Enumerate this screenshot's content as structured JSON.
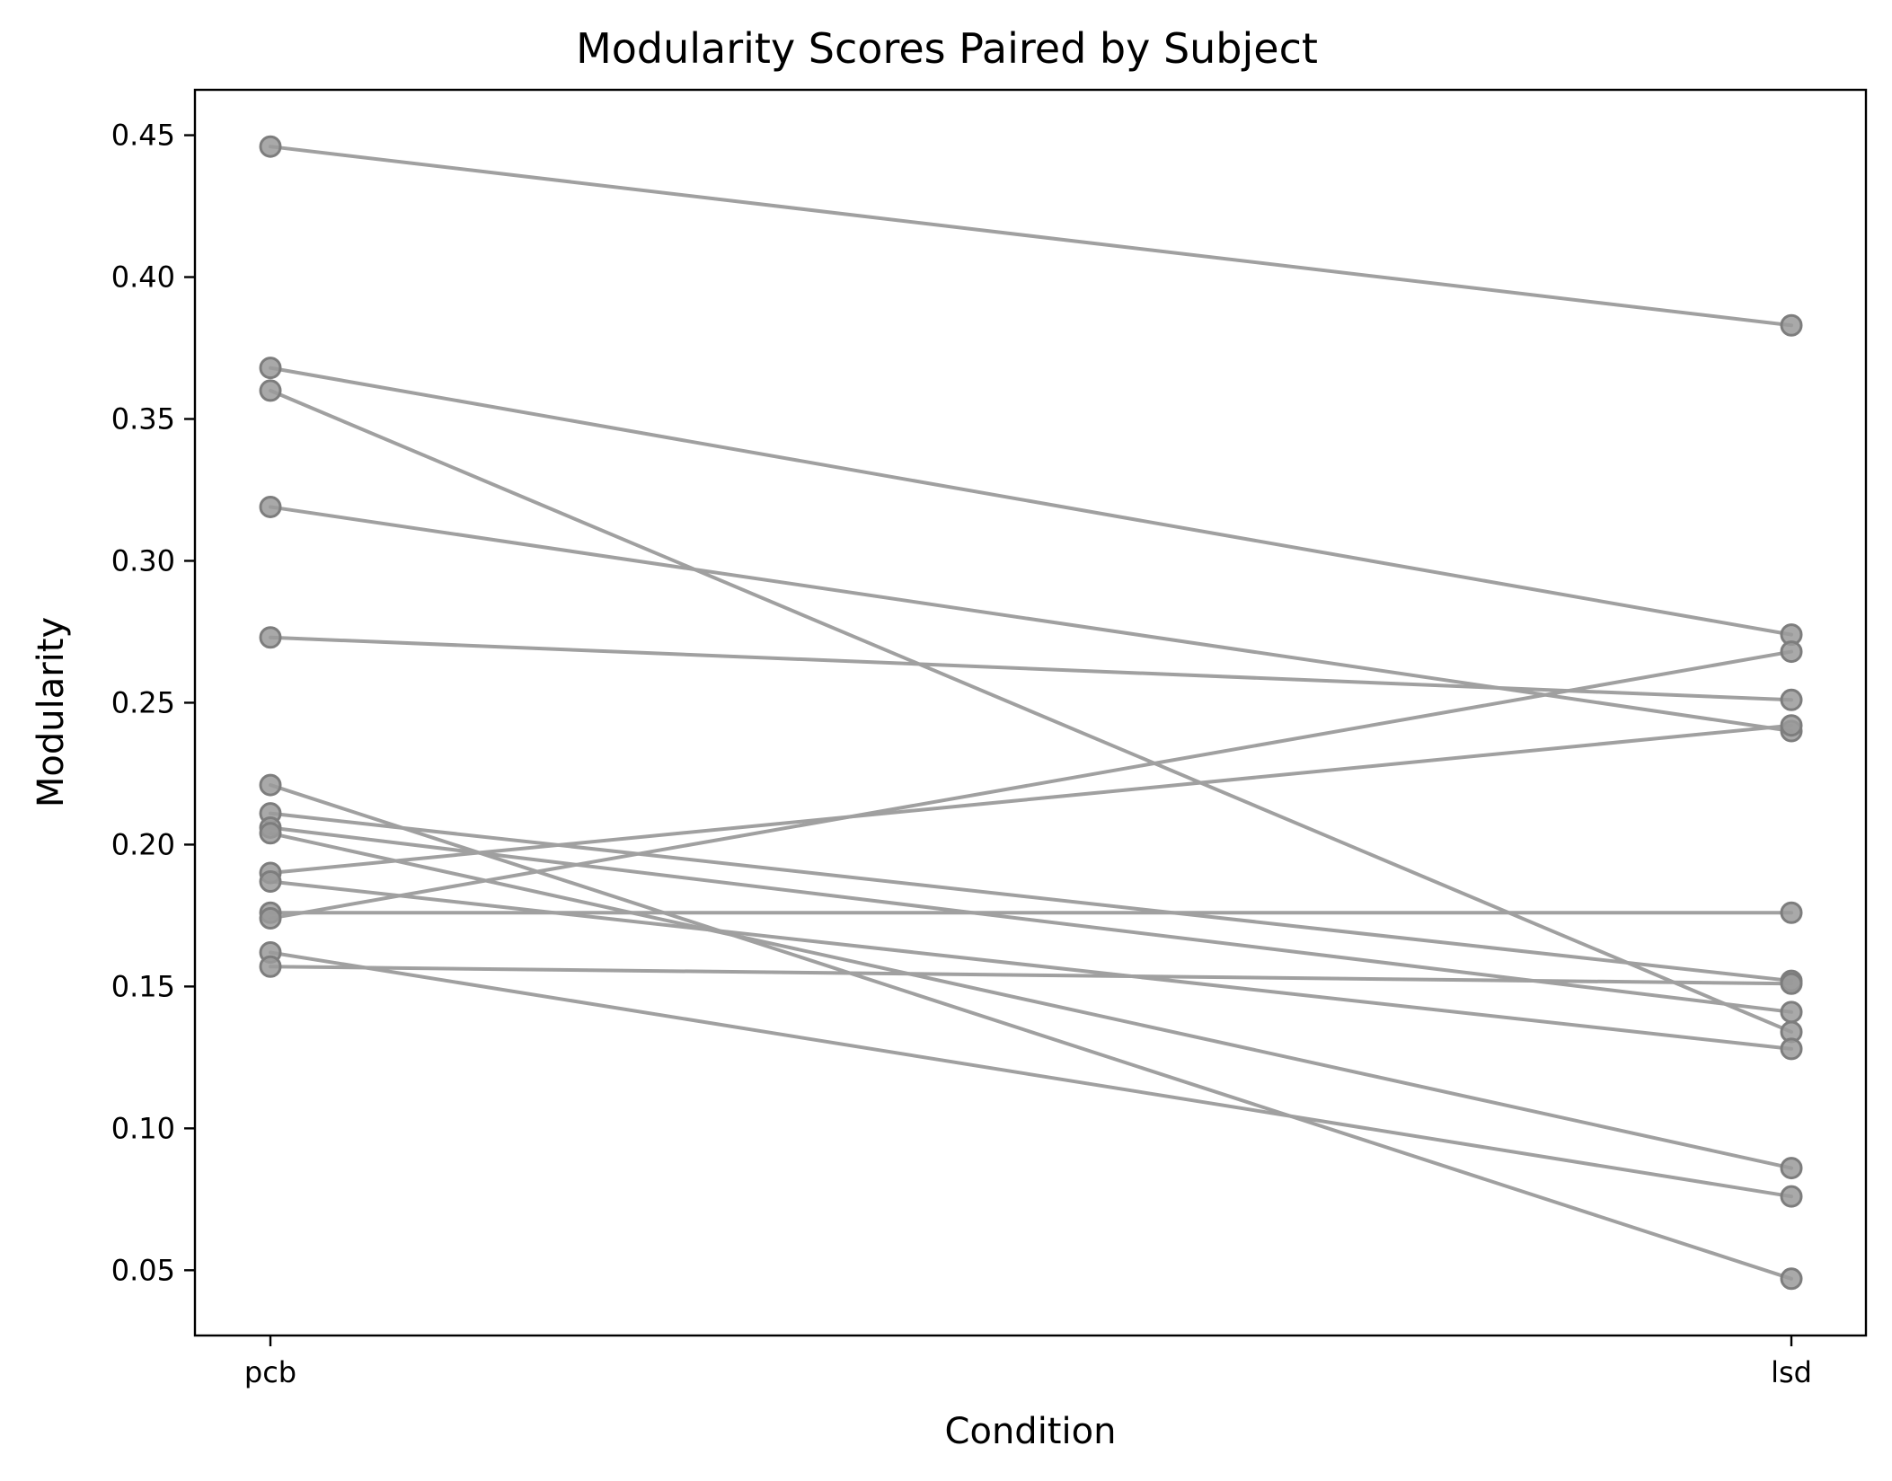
{
  "chart_data": {
    "type": "line",
    "title": "Modularity Scores Paired by Subject",
    "xlabel": "Condition",
    "ylabel": "Modularity",
    "categories": [
      "pcb",
      "lsd"
    ],
    "ylim": [
      0.027,
      0.466
    ],
    "yticks": [
      "0.05",
      "0.10",
      "0.15",
      "0.20",
      "0.25",
      "0.30",
      "0.35",
      "0.40",
      "0.45"
    ],
    "grid": false,
    "series": [
      {
        "values": [
          0.446,
          0.383
        ]
      },
      {
        "values": [
          0.368,
          0.274
        ]
      },
      {
        "values": [
          0.36,
          0.134
        ]
      },
      {
        "values": [
          0.319,
          0.24
        ]
      },
      {
        "values": [
          0.273,
          0.251
        ]
      },
      {
        "values": [
          0.221,
          0.047
        ]
      },
      {
        "values": [
          0.211,
          0.152
        ]
      },
      {
        "values": [
          0.206,
          0.141
        ]
      },
      {
        "values": [
          0.204,
          0.086
        ]
      },
      {
        "values": [
          0.19,
          0.242
        ]
      },
      {
        "values": [
          0.187,
          0.128
        ]
      },
      {
        "values": [
          0.176,
          0.176
        ]
      },
      {
        "values": [
          0.174,
          0.268
        ]
      },
      {
        "values": [
          0.162,
          0.076
        ]
      },
      {
        "values": [
          0.157,
          0.151
        ]
      }
    ],
    "colors": {
      "line": "#a0a0a0",
      "marker_fill": "#9a9a9a",
      "marker_edge": "#7d7d7d",
      "axis": "#000000"
    }
  }
}
